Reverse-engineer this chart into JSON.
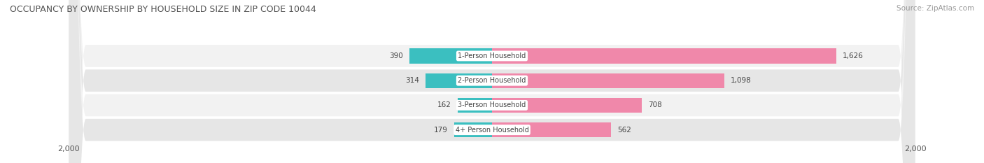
{
  "title": "OCCUPANCY BY OWNERSHIP BY HOUSEHOLD SIZE IN ZIP CODE 10044",
  "source": "Source: ZipAtlas.com",
  "categories": [
    "1-Person Household",
    "2-Person Household",
    "3-Person Household",
    "4+ Person Household"
  ],
  "owner_values": [
    390,
    314,
    162,
    179
  ],
  "renter_values": [
    1626,
    1098,
    708,
    562
  ],
  "owner_color": "#3bbfc0",
  "renter_color": "#f088aa",
  "row_bg_light": "#f2f2f2",
  "row_bg_dark": "#e6e6e6",
  "axis_max": 2000,
  "title_fontsize": 9,
  "source_fontsize": 7.5,
  "label_fontsize": 7,
  "value_fontsize": 7.5,
  "axis_label_fontsize": 8,
  "legend_fontsize": 8,
  "background_color": "#ffffff",
  "center_label_bg": "#ffffff",
  "center_label_color": "#444444",
  "value_color": "#444444"
}
